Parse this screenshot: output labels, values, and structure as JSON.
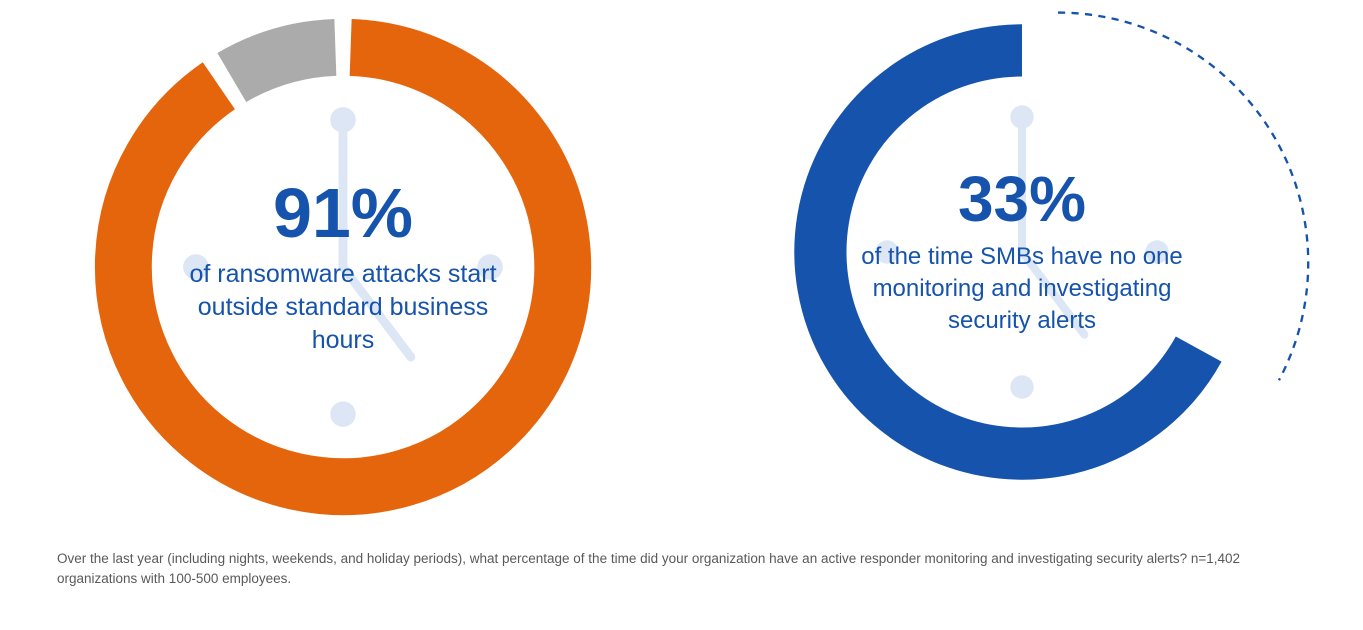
{
  "colors": {
    "orange": "#E5650D",
    "gray": "#ABABAB",
    "blue": "#1553AC",
    "watermark": "#DCE6F4",
    "caption_gray": "#595959",
    "background": "#FFFFFF"
  },
  "chart_data": [
    {
      "type": "donut",
      "center_value": "91%",
      "center_label": "of ransomware attacks start outside standard business hours",
      "start_deg": 0,
      "pad_deg": 2,
      "legend_position": "none",
      "segments": [
        {
          "label": "ransomware attacks starting outside standard business hours",
          "value": 91,
          "color": "#E5650D",
          "style": "solid"
        },
        {
          "label": "attacks during standard business hours",
          "value": 9,
          "color": "#ABABAB",
          "style": "solid"
        }
      ],
      "watermark_icon": "clock-icon"
    },
    {
      "type": "donut",
      "center_value": "33%",
      "center_label": "of the time SMBs have no one monitoring and investigating security alerts",
      "start_deg": 0,
      "pad_deg": 0,
      "legend_position": "none",
      "segments": [
        {
          "label": "time with no one monitoring security alerts",
          "value": 33,
          "color": "#1553AC",
          "style": "dashed-outline"
        },
        {
          "label": "time with active responder monitoring",
          "value": 67,
          "color": "#1553AC",
          "style": "solid"
        }
      ],
      "watermark_icon": "clock-icon"
    }
  ],
  "caption": {
    "text": "Over the last year (including nights, weekends, and holiday periods), what percentage of the time did your organization have an active responder monitoring and investigating security alerts? n=1,402 organizations with 100-500 employees."
  }
}
